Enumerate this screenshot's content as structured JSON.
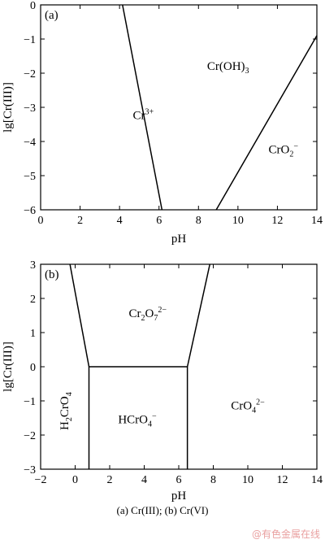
{
  "caption": "(a) Cr(III); (b) Cr(VI)",
  "watermark": "@有色金属在线",
  "chart_data": [
    {
      "type": "line",
      "panel_label": "(a)",
      "xlabel": "pH",
      "ylabel": "lg[Cr(III)]",
      "xlim": [
        0,
        14
      ],
      "ylim": [
        -6,
        0
      ],
      "xticks": [
        0,
        2,
        4,
        6,
        8,
        10,
        12,
        14
      ],
      "yticks": [
        0,
        -1,
        -2,
        -3,
        -4,
        -5,
        -6
      ],
      "lines": [
        {
          "x": [
            4.15,
            6.15
          ],
          "y": [
            0,
            -6
          ]
        },
        {
          "x": [
            8.9,
            14
          ],
          "y": [
            -6,
            -0.9
          ]
        }
      ],
      "regions": [
        {
          "label": "Cr",
          "sup": "3+",
          "x": 5.2,
          "y": -3.35
        },
        {
          "label": "Cr(OH)",
          "sub": "3",
          "x": 9.5,
          "y": -1.9
        },
        {
          "label": "CrO",
          "sub": "2",
          "sup": "−",
          "x": 12.3,
          "y": -4.35
        }
      ]
    },
    {
      "type": "line",
      "panel_label": "(b)",
      "xlabel": "pH",
      "ylabel": "lg[Cr(III)]",
      "xlim": [
        -2,
        14
      ],
      "ylim": [
        -3,
        3
      ],
      "xticks": [
        -2,
        0,
        2,
        4,
        6,
        8,
        10,
        12,
        14
      ],
      "yticks": [
        3,
        2,
        1,
        0,
        -1,
        -2,
        -3
      ],
      "lines": [
        {
          "x": [
            -0.3,
            0.8
          ],
          "y": [
            3,
            0
          ]
        },
        {
          "x": [
            0.8,
            6.5
          ],
          "y": [
            0,
            0
          ]
        },
        {
          "x": [
            6.5,
            7.8
          ],
          "y": [
            0,
            3
          ]
        },
        {
          "x": [
            0.8,
            0.8
          ],
          "y": [
            0,
            -3
          ]
        },
        {
          "x": [
            6.5,
            6.5
          ],
          "y": [
            0,
            -3
          ]
        }
      ],
      "regions": [
        {
          "label": "Cr",
          "sub": "2",
          "label2": "O",
          "sub2": "7",
          "sup2": "2−",
          "x": 4.2,
          "y": 1.45
        },
        {
          "label": "HCrO",
          "sub": "4",
          "sup": "−",
          "x": 3.6,
          "y": -1.65
        },
        {
          "label": "CrO",
          "sub": "4",
          "sup": "2−",
          "x": 10.0,
          "y": -1.25
        },
        {
          "label": "H",
          "sub": "2",
          "label2": "CrO",
          "sub2": "4",
          "x": -0.4,
          "y": -1.3,
          "rotate": -90
        }
      ]
    }
  ]
}
